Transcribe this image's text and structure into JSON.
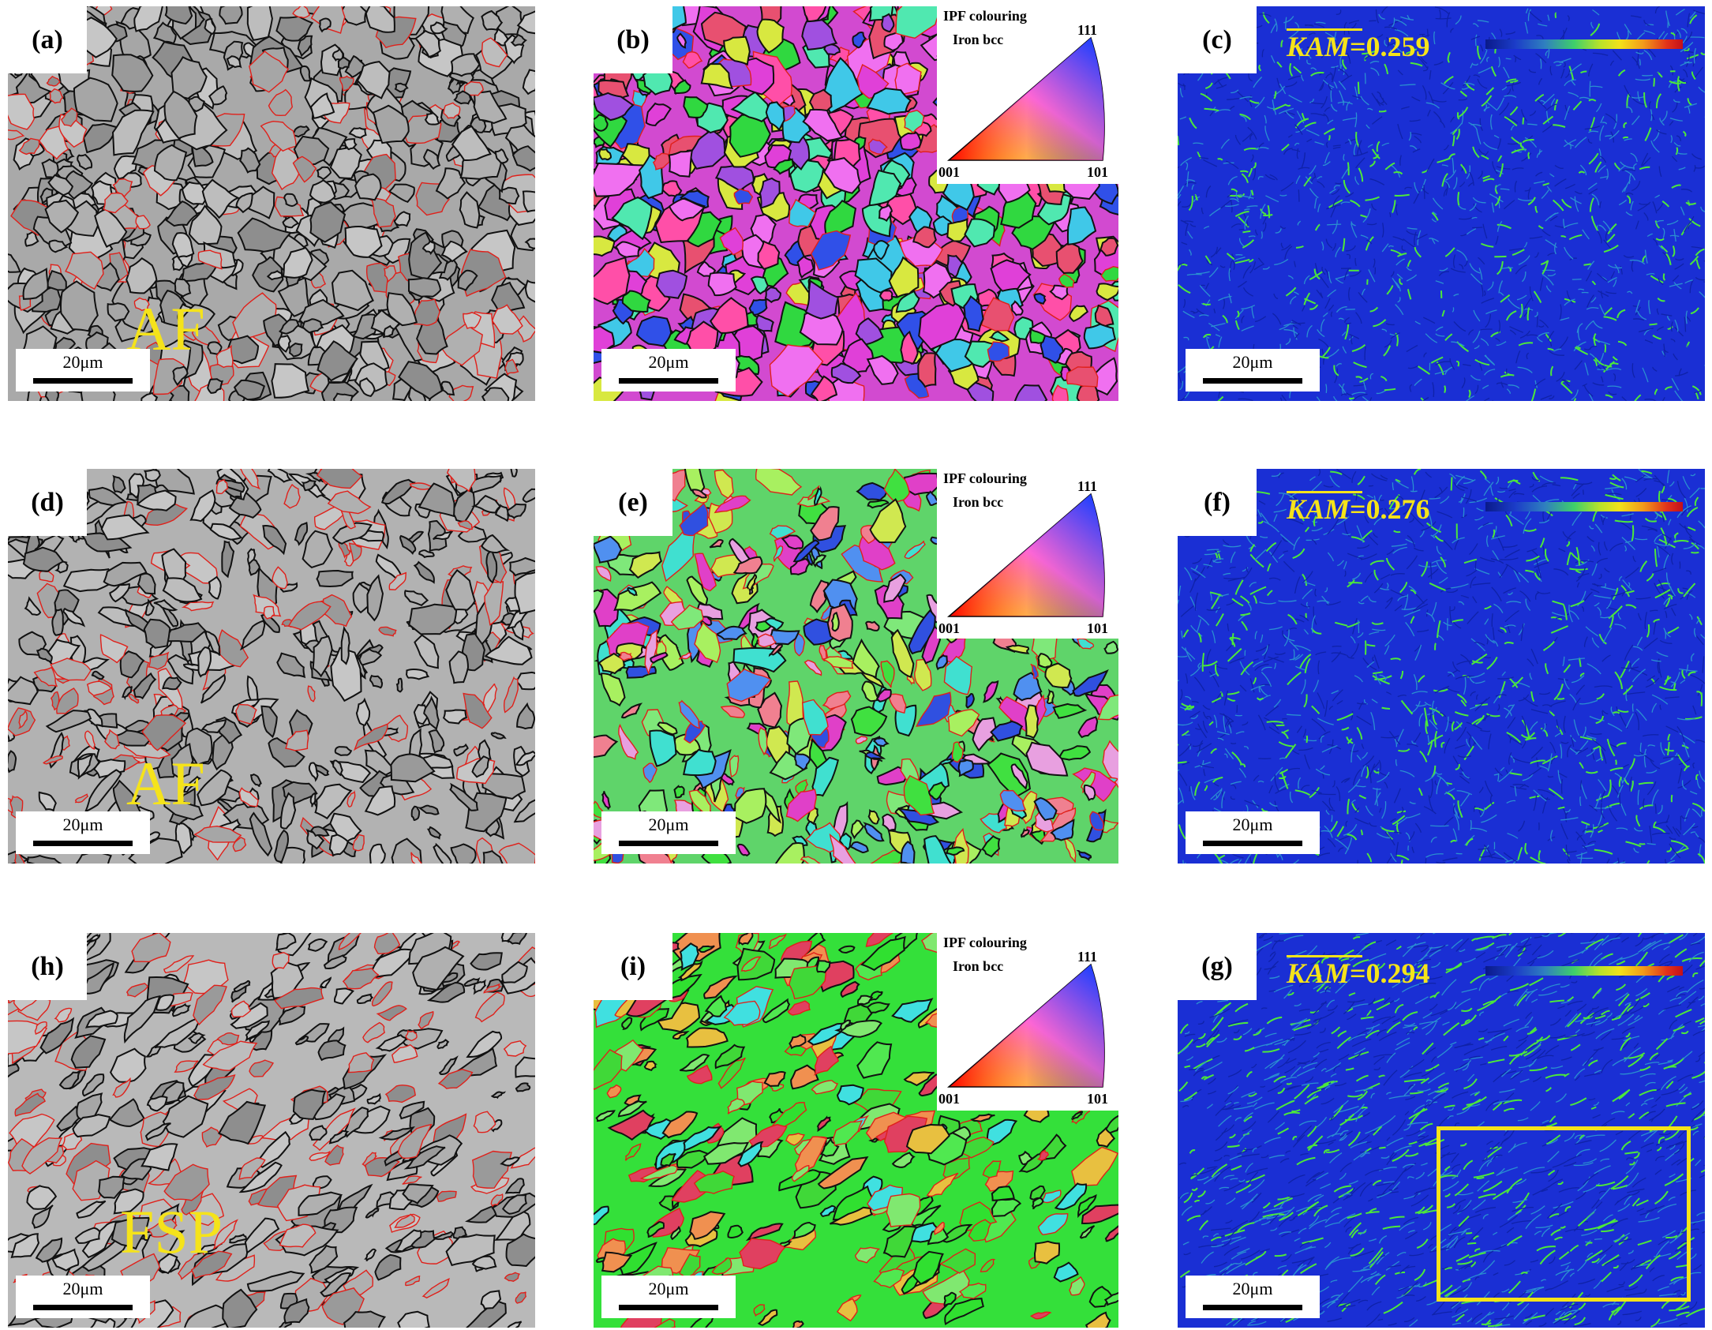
{
  "figure": {
    "panels": [
      {
        "id": "a",
        "label": "(a)",
        "type": "band-contrast",
        "phase": "AF",
        "scale_bar": "20μm"
      },
      {
        "id": "b",
        "label": "(b)",
        "type": "ipf",
        "scale_bar": "20μm"
      },
      {
        "id": "c",
        "label": "(c)",
        "type": "kam",
        "kam_value": "=0.259",
        "scale_bar": "20μm"
      },
      {
        "id": "d",
        "label": "(d)",
        "type": "band-contrast",
        "phase": "AF",
        "scale_bar": "20μm"
      },
      {
        "id": "e",
        "label": "(e)",
        "type": "ipf",
        "scale_bar": "20μm"
      },
      {
        "id": "f",
        "label": "(f)",
        "type": "kam",
        "kam_value": "=0.276",
        "scale_bar": "20μm"
      },
      {
        "id": "h",
        "label": "(h)",
        "type": "band-contrast",
        "phase": "FSP",
        "scale_bar": "20μm"
      },
      {
        "id": "i",
        "label": "(i)",
        "type": "ipf",
        "scale_bar": "20μm"
      },
      {
        "id": "g",
        "label": "(g)",
        "type": "kam",
        "kam_value": "=0.294",
        "scale_bar": "20μm",
        "highlight_box": true
      }
    ],
    "ipf_legend": {
      "title": "IPF colouring",
      "phase": "Iron bcc",
      "corner_001": "001",
      "corner_101": "101",
      "corner_111": "111"
    },
    "kam_symbol": "KAM",
    "colors": {
      "label_yellow": "#f5e31a",
      "kam_blue": "#1a2fd4",
      "kam_green": "#3fe23a",
      "boundary_black": "#000000",
      "boundary_red": "#e0201a"
    }
  }
}
